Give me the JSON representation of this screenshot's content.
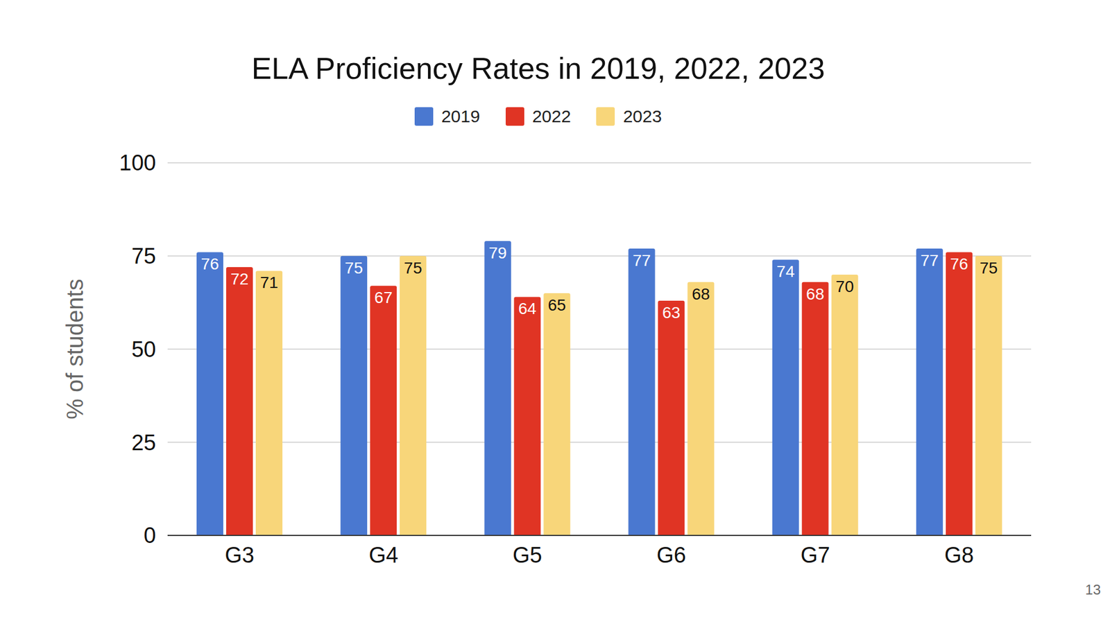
{
  "chart_data": {
    "type": "bar",
    "title": "ELA Proficiency Rates in 2019, 2022, 2023",
    "y_label": "% of students",
    "categories": [
      "G3",
      "G4",
      "G5",
      "G6",
      "G7",
      "G8"
    ],
    "series": [
      {
        "name": "2019",
        "color": "#4a78d0",
        "values": [
          76,
          75,
          79,
          77,
          74,
          77
        ]
      },
      {
        "name": "2022",
        "color": "#e03424",
        "values": [
          72,
          67,
          64,
          63,
          68,
          76
        ]
      },
      {
        "name": "2023",
        "color": "#f8d67a",
        "values": [
          71,
          75,
          65,
          68,
          70,
          75
        ]
      }
    ],
    "ylim": [
      0,
      100
    ],
    "yticks": [
      0,
      25,
      50,
      75,
      100
    ],
    "grid": true,
    "legend": "top",
    "data_labels": true,
    "annotations": [
      "13"
    ]
  }
}
